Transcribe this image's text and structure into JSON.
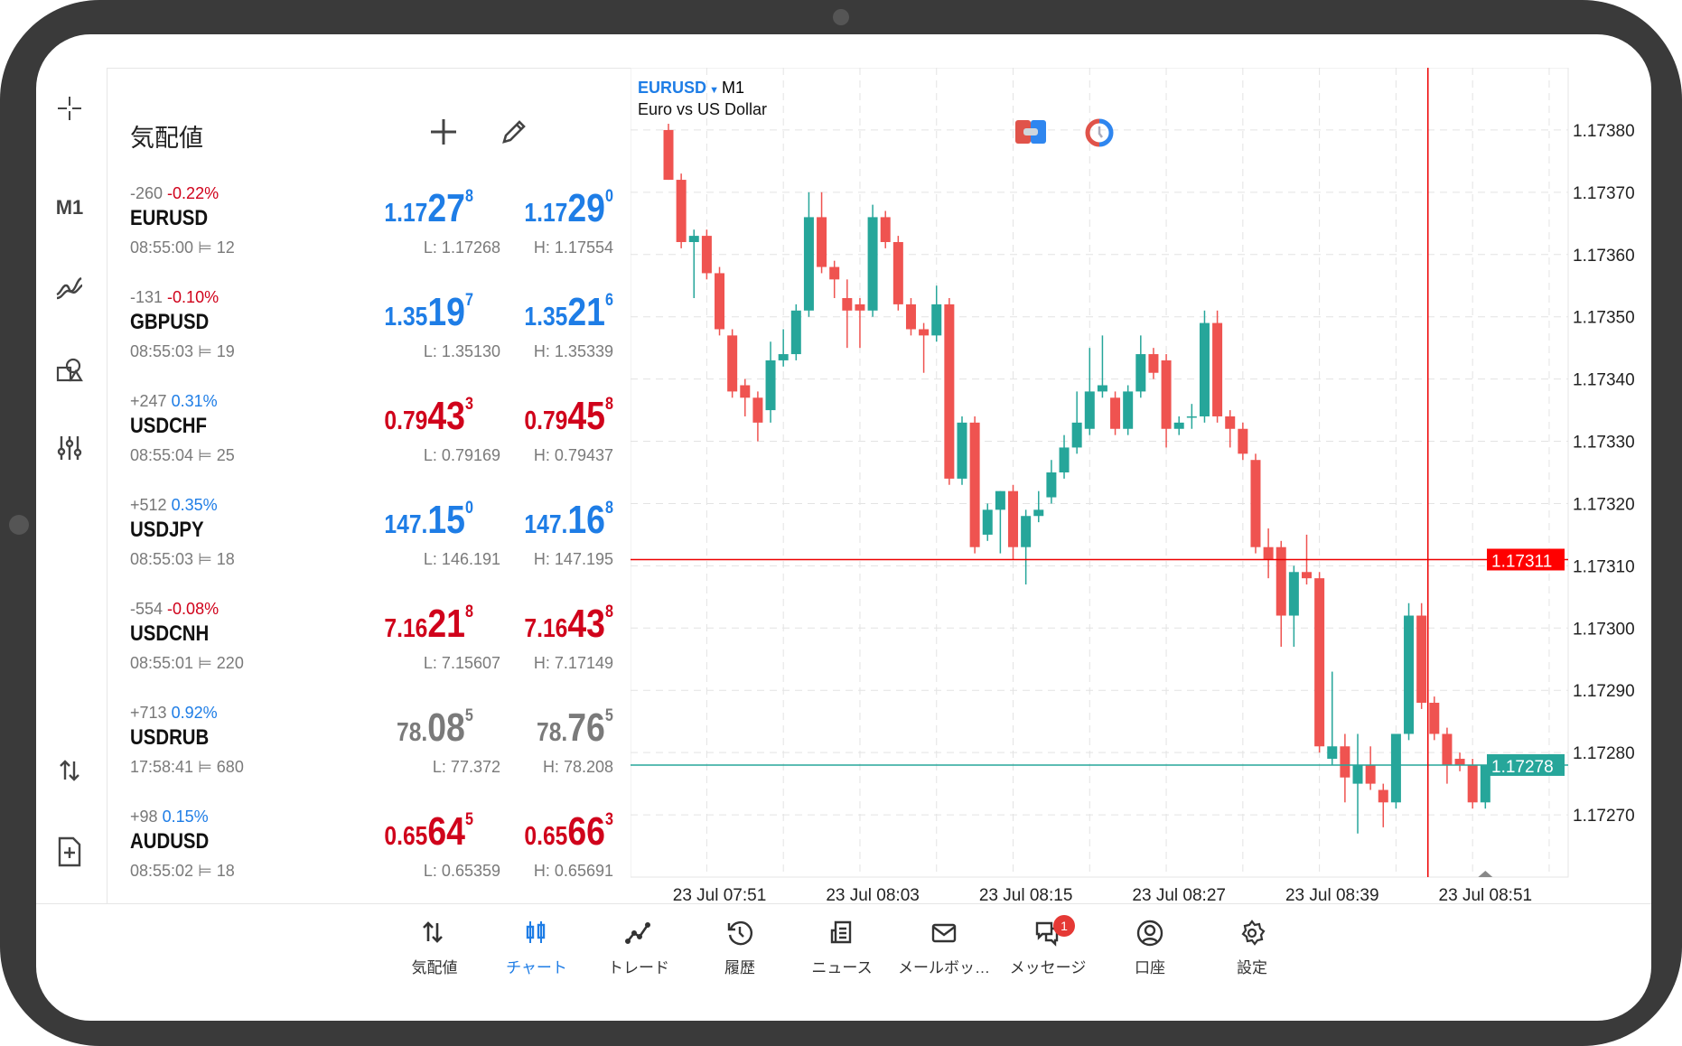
{
  "watchlist": {
    "title": "気配値",
    "rows": [
      {
        "change_points": "-260",
        "change_pct": "-0.22%",
        "pct_color": "#d0021b",
        "symbol": "EURUSD",
        "time": "08:55:00",
        "spread": "12",
        "price_color": "#1e7de6",
        "bid": {
          "a": "1.17",
          "b": "27",
          "c": "8"
        },
        "ask": {
          "a": "1.17",
          "b": "29",
          "c": "0"
        },
        "low": "L: 1.17268",
        "high": "H: 1.17554"
      },
      {
        "change_points": "-131",
        "change_pct": "-0.10%",
        "pct_color": "#d0021b",
        "symbol": "GBPUSD",
        "time": "08:55:03",
        "spread": "19",
        "price_color": "#1e7de6",
        "bid": {
          "a": "1.35",
          "b": "19",
          "c": "7"
        },
        "ask": {
          "a": "1.35",
          "b": "21",
          "c": "6"
        },
        "low": "L: 1.35130",
        "high": "H: 1.35339"
      },
      {
        "change_points": "+247",
        "change_pct": "0.31%",
        "pct_color": "#1e7de6",
        "symbol": "USDCHF",
        "time": "08:55:04",
        "spread": "25",
        "price_color": "#d0021b",
        "bid": {
          "a": "0.79",
          "b": "43",
          "c": "3"
        },
        "ask": {
          "a": "0.79",
          "b": "45",
          "c": "8"
        },
        "low": "L: 0.79169",
        "high": "H: 0.79437"
      },
      {
        "change_points": "+512",
        "change_pct": "0.35%",
        "pct_color": "#1e7de6",
        "symbol": "USDJPY",
        "time": "08:55:03",
        "spread": "18",
        "price_color": "#1e7de6",
        "bid": {
          "a": "147.",
          "b": "15",
          "c": "0"
        },
        "ask": {
          "a": "147.",
          "b": "16",
          "c": "8"
        },
        "low": "L: 146.191",
        "high": "H: 147.195"
      },
      {
        "change_points": "-554",
        "change_pct": "-0.08%",
        "pct_color": "#d0021b",
        "symbol": "USDCNH",
        "time": "08:55:01",
        "spread": "220",
        "price_color": "#d0021b",
        "bid": {
          "a": "7.16",
          "b": "21",
          "c": "8"
        },
        "ask": {
          "a": "7.16",
          "b": "43",
          "c": "8"
        },
        "low": "L: 7.15607",
        "high": "H: 7.17149"
      },
      {
        "change_points": "+713",
        "change_pct": "0.92%",
        "pct_color": "#1e7de6",
        "symbol": "USDRUB",
        "time": "17:58:41",
        "spread": "680",
        "price_color": "#7a7a7a",
        "bid": {
          "a": "78.",
          "b": "08",
          "c": "5"
        },
        "ask": {
          "a": "78.",
          "b": "76",
          "c": "5"
        },
        "low": "L: 77.372",
        "high": "H: 78.208"
      },
      {
        "change_points": "+98",
        "change_pct": "0.15%",
        "pct_color": "#1e7de6",
        "symbol": "AUDUSD",
        "time": "08:55:02",
        "spread": "18",
        "price_color": "#d0021b",
        "bid": {
          "a": "0.65",
          "b": "64",
          "c": "5"
        },
        "ask": {
          "a": "0.65",
          "b": "66",
          "c": "3"
        },
        "low": "L: 0.65359",
        "high": "H: 0.65691"
      }
    ]
  },
  "left_toolbar": {
    "timeframe": "M1"
  },
  "chart": {
    "symbol": "EURUSD",
    "timeframe": "M1",
    "description": "Euro vs US Dollar"
  },
  "chart_data": {
    "type": "candlestick",
    "ylim": [
      1.1726,
      1.1739
    ],
    "yticks": [
      "1.17380",
      "1.17370",
      "1.17360",
      "1.17350",
      "1.17340",
      "1.17330",
      "1.17320",
      "1.17310",
      "1.17300",
      "1.17290",
      "1.17280",
      "1.17270"
    ],
    "xticks": [
      {
        "index": 4,
        "label": "23 Jul 07:51"
      },
      {
        "index": 16,
        "label": "23 Jul 08:03"
      },
      {
        "index": 28,
        "label": "23 Jul 08:15"
      },
      {
        "index": 40,
        "label": "23 Jul 08:27"
      },
      {
        "index": 52,
        "label": "23 Jul 08:39"
      },
      {
        "index": 64,
        "label": "23 Jul 08:51"
      }
    ],
    "crosshair_price": "1.17311",
    "crosshair_index": 59.5,
    "bid_price": "1.17278",
    "up_color": "#26a69a",
    "down_color": "#ef5350",
    "ohlc": [
      [
        1.1738,
        1.17381,
        1.17372,
        1.17372
      ],
      [
        1.17372,
        1.17373,
        1.17361,
        1.17362
      ],
      [
        1.17362,
        1.17364,
        1.17353,
        1.17363
      ],
      [
        1.17363,
        1.17364,
        1.17356,
        1.17357
      ],
      [
        1.17357,
        1.17358,
        1.17347,
        1.17348
      ],
      [
        1.17347,
        1.17348,
        1.17337,
        1.17338
      ],
      [
        1.17339,
        1.1734,
        1.17334,
        1.17337
      ],
      [
        1.17337,
        1.17338,
        1.1733,
        1.17333
      ],
      [
        1.17335,
        1.17346,
        1.17333,
        1.17343
      ],
      [
        1.17343,
        1.17348,
        1.17342,
        1.17344
      ],
      [
        1.17344,
        1.17352,
        1.17343,
        1.17351
      ],
      [
        1.17351,
        1.1737,
        1.1735,
        1.17366
      ],
      [
        1.17366,
        1.1737,
        1.17357,
        1.17358
      ],
      [
        1.17358,
        1.17359,
        1.17353,
        1.17356
      ],
      [
        1.17353,
        1.17356,
        1.17345,
        1.17351
      ],
      [
        1.17352,
        1.17353,
        1.17345,
        1.17351
      ],
      [
        1.17351,
        1.17368,
        1.1735,
        1.17366
      ],
      [
        1.17366,
        1.17367,
        1.17361,
        1.17362
      ],
      [
        1.17362,
        1.17363,
        1.17351,
        1.17352
      ],
      [
        1.17352,
        1.17353,
        1.17347,
        1.17348
      ],
      [
        1.17348,
        1.17349,
        1.17341,
        1.17347
      ],
      [
        1.17347,
        1.17355,
        1.17346,
        1.17352
      ],
      [
        1.17352,
        1.17353,
        1.17323,
        1.17324
      ],
      [
        1.17324,
        1.17334,
        1.17323,
        1.17333
      ],
      [
        1.17333,
        1.17334,
        1.17312,
        1.17313
      ],
      [
        1.17315,
        1.1732,
        1.17314,
        1.17319
      ],
      [
        1.17319,
        1.17322,
        1.17312,
        1.17322
      ],
      [
        1.17322,
        1.17323,
        1.17311,
        1.17313
      ],
      [
        1.17313,
        1.17319,
        1.17307,
        1.17318
      ],
      [
        1.17318,
        1.17322,
        1.17317,
        1.17319
      ],
      [
        1.17321,
        1.17327,
        1.1732,
        1.17325
      ],
      [
        1.17325,
        1.17331,
        1.17324,
        1.17329
      ],
      [
        1.17329,
        1.17338,
        1.17328,
        1.17333
      ],
      [
        1.17332,
        1.17345,
        1.17331,
        1.17338
      ],
      [
        1.17338,
        1.17347,
        1.17337,
        1.17339
      ],
      [
        1.17337,
        1.17338,
        1.17331,
        1.17332
      ],
      [
        1.17332,
        1.17339,
        1.17331,
        1.17338
      ],
      [
        1.17338,
        1.17347,
        1.17337,
        1.17344
      ],
      [
        1.17344,
        1.17345,
        1.1734,
        1.17341
      ],
      [
        1.17343,
        1.17344,
        1.17329,
        1.17332
      ],
      [
        1.17332,
        1.17334,
        1.17331,
        1.17333
      ],
      [
        1.17334,
        1.17336,
        1.17332,
        1.17334
      ],
      [
        1.17334,
        1.17351,
        1.17333,
        1.17349
      ],
      [
        1.17349,
        1.17351,
        1.17333,
        1.17334
      ],
      [
        1.17334,
        1.17335,
        1.17329,
        1.17332
      ],
      [
        1.17332,
        1.17333,
        1.17327,
        1.17328
      ],
      [
        1.17327,
        1.17328,
        1.17312,
        1.17313
      ],
      [
        1.17313,
        1.17316,
        1.17308,
        1.17311
      ],
      [
        1.17313,
        1.17314,
        1.17297,
        1.17302
      ],
      [
        1.17302,
        1.1731,
        1.17297,
        1.17309
      ],
      [
        1.17309,
        1.17315,
        1.17307,
        1.17308
      ],
      [
        1.17308,
        1.17309,
        1.1728,
        1.17281
      ],
      [
        1.17279,
        1.17293,
        1.17278,
        1.17281
      ],
      [
        1.17281,
        1.17283,
        1.17272,
        1.17276
      ],
      [
        1.17275,
        1.17283,
        1.17267,
        1.17278
      ],
      [
        1.17278,
        1.17281,
        1.17274,
        1.17275
      ],
      [
        1.17274,
        1.17275,
        1.17268,
        1.17272
      ],
      [
        1.17272,
        1.17283,
        1.17271,
        1.17283
      ],
      [
        1.17283,
        1.17304,
        1.17282,
        1.17302
      ],
      [
        1.17302,
        1.17304,
        1.17287,
        1.17288
      ],
      [
        1.17288,
        1.17289,
        1.17282,
        1.17283
      ],
      [
        1.17283,
        1.17284,
        1.17275,
        1.17278
      ],
      [
        1.17279,
        1.1728,
        1.17277,
        1.17278
      ],
      [
        1.17278,
        1.17279,
        1.17271,
        1.17272
      ],
      [
        1.17272,
        1.17278,
        1.17271,
        1.17278
      ]
    ]
  },
  "bottom_nav": {
    "items": [
      {
        "label": "気配値",
        "icon": "quotes-icon"
      },
      {
        "label": "チャート",
        "icon": "chart-icon"
      },
      {
        "label": "トレード",
        "icon": "trade-icon"
      },
      {
        "label": "履歴",
        "icon": "history-icon"
      },
      {
        "label": "ニュース",
        "icon": "news-icon"
      },
      {
        "label": "メールボッ…",
        "icon": "mail-icon"
      },
      {
        "label": "メッセージ",
        "icon": "messages-icon",
        "badge": "1"
      },
      {
        "label": "口座",
        "icon": "account-icon"
      },
      {
        "label": "設定",
        "icon": "settings-icon"
      }
    ]
  }
}
